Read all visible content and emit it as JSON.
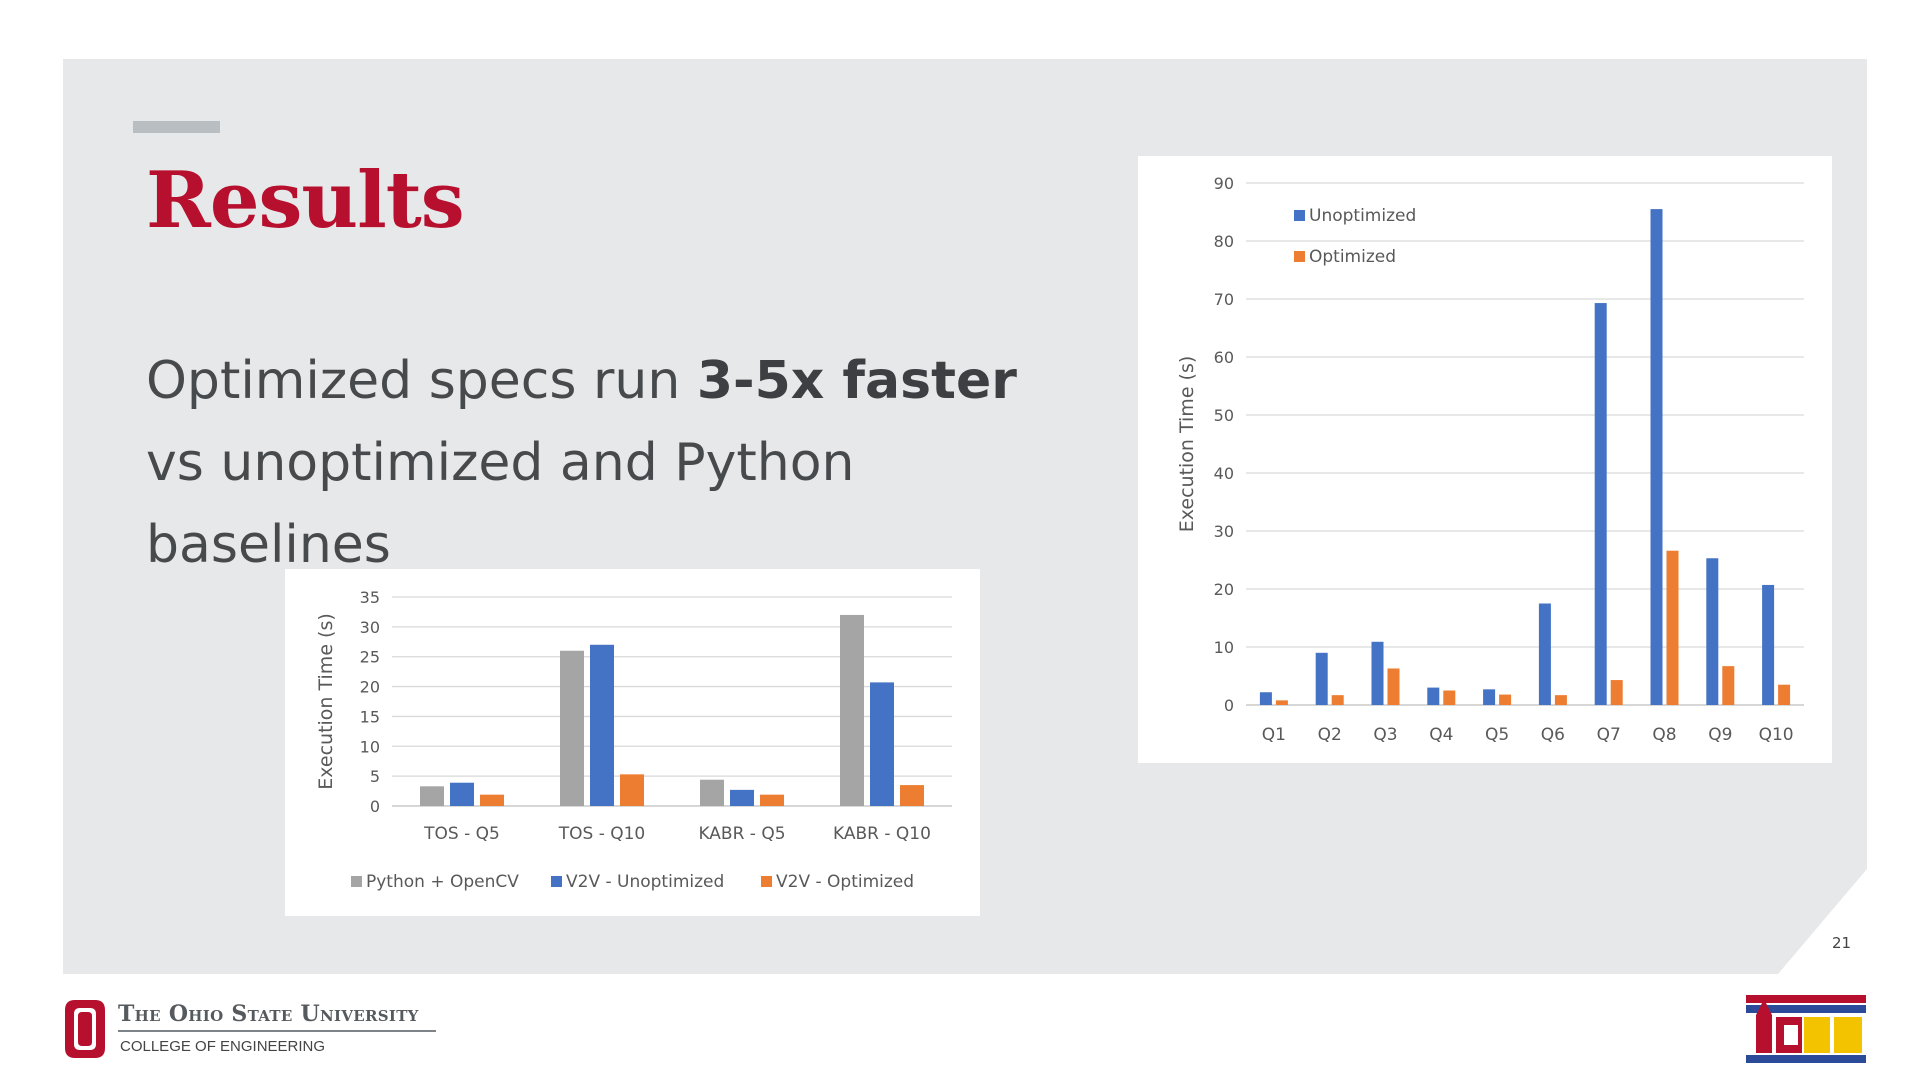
{
  "slide": {
    "title": "Results",
    "subtitle_prefix": "Optimized specs run ",
    "subtitle_bold": "3-5x faster",
    "subtitle_line2": "vs unoptimized and Python baselines",
    "page_number": "21"
  },
  "footer": {
    "university": "The Ohio State University",
    "college": "COLLEGE OF ENGINEERING",
    "conference_logo": "ICDE"
  },
  "colors": {
    "accent": "#b70f2e",
    "gray_series": "#a5a5a5",
    "blue_series": "#4472c4",
    "orange_series": "#ed7d31"
  },
  "chart_data": [
    {
      "type": "bar",
      "title": "",
      "xlabel": "",
      "ylabel": "Execution Time (s)",
      "ylim": [
        0,
        35
      ],
      "yticks": [
        0,
        5,
        10,
        15,
        20,
        25,
        30,
        35
      ],
      "categories": [
        "TOS - Q5",
        "TOS - Q10",
        "KABR - Q5",
        "KABR - Q10"
      ],
      "series": [
        {
          "name": "Python + OpenCV",
          "color": "#a5a5a5",
          "values": [
            3.3,
            26,
            4.4,
            32
          ]
        },
        {
          "name": "V2V - Unoptimized",
          "color": "#4472c4",
          "values": [
            3.9,
            27,
            2.7,
            20.7
          ]
        },
        {
          "name": "V2V - Optimized",
          "color": "#ed7d31",
          "values": [
            1.9,
            5.3,
            1.9,
            3.5
          ]
        }
      ],
      "legend": "bottom",
      "grid": true
    },
    {
      "type": "bar",
      "title": "",
      "xlabel": "",
      "ylabel": "Execution Time (s)",
      "ylim": [
        0,
        90
      ],
      "yticks": [
        0,
        10,
        20,
        30,
        40,
        50,
        60,
        70,
        80,
        90
      ],
      "categories": [
        "Q1",
        "Q2",
        "Q3",
        "Q4",
        "Q5",
        "Q6",
        "Q7",
        "Q8",
        "Q9",
        "Q10"
      ],
      "series": [
        {
          "name": "Unoptimized",
          "color": "#4472c4",
          "values": [
            2.2,
            9,
            10.9,
            3,
            2.7,
            17.5,
            69.3,
            85.5,
            25.3,
            20.7
          ]
        },
        {
          "name": "Optimized",
          "color": "#ed7d31",
          "values": [
            0.8,
            1.7,
            6.3,
            2.5,
            1.8,
            1.7,
            4.3,
            26.6,
            6.7,
            3.5
          ]
        }
      ],
      "legend": "top-left",
      "grid": true
    }
  ]
}
